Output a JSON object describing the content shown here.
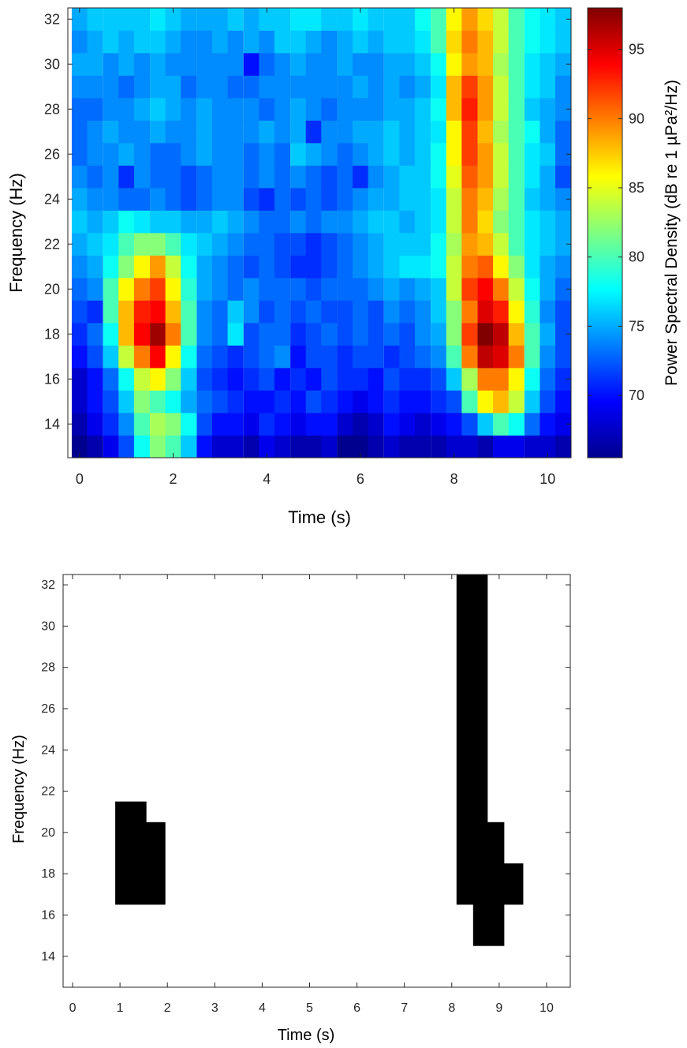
{
  "chart_data": [
    {
      "type": "heatmap",
      "title": "",
      "xlabel": "Time (s)",
      "ylabel": "Frequency (Hz)",
      "colorbar_label": "Power Spectral Density (dB re 1 µPa²/Hz)",
      "colormap": "jet",
      "xlim": [
        -0.25,
        10.5
      ],
      "ylim": [
        12.5,
        32.5
      ],
      "clim": [
        65.5,
        98
      ],
      "xticks": [
        0,
        2,
        4,
        6,
        8,
        10
      ],
      "yticks": [
        14,
        16,
        18,
        20,
        22,
        24,
        26,
        28,
        30,
        32
      ],
      "colorbar_ticks": [
        70,
        75,
        80,
        85,
        90,
        95
      ],
      "grid": false,
      "time_bin_s": 0.333,
      "freq_bin_hz": 1,
      "frequencies": [
        13,
        14,
        15,
        16,
        17,
        18,
        19,
        20,
        21,
        22,
        23,
        24,
        25,
        26,
        27,
        28,
        29,
        30,
        31,
        32
      ],
      "times": [
        0.0,
        0.33,
        0.67,
        1.0,
        1.33,
        1.67,
        2.0,
        2.33,
        2.67,
        3.0,
        3.33,
        3.67,
        4.0,
        4.33,
        4.67,
        5.0,
        5.33,
        5.67,
        6.0,
        6.33,
        6.67,
        7.0,
        7.33,
        7.67,
        8.0,
        8.33,
        8.67,
        9.0,
        9.33,
        9.67,
        10.0,
        10.33
      ],
      "values_dB": [
        [
          66,
          67,
          69,
          72,
          78,
          82,
          80,
          76,
          70,
          68,
          68,
          67,
          69,
          68,
          67,
          67,
          68,
          66,
          66,
          67,
          68,
          67,
          67,
          67,
          68,
          68,
          67,
          69,
          69,
          68,
          68,
          67
        ],
        [
          67,
          69,
          71,
          74,
          80,
          83,
          82,
          78,
          72,
          70,
          70,
          69,
          71,
          70,
          69,
          70,
          70,
          68,
          67,
          68,
          70,
          69,
          68,
          69,
          70,
          72,
          76,
          80,
          78,
          73,
          70,
          69
        ],
        [
          68,
          70,
          72,
          76,
          82,
          80,
          78,
          75,
          73,
          72,
          71,
          70,
          70,
          71,
          70,
          72,
          71,
          70,
          69,
          70,
          71,
          70,
          70,
          71,
          72,
          80,
          86,
          88,
          84,
          76,
          72,
          70
        ],
        [
          68,
          70,
          73,
          78,
          84,
          86,
          82,
          76,
          72,
          71,
          70,
          71,
          72,
          70,
          71,
          70,
          72,
          71,
          71,
          70,
          72,
          71,
          71,
          72,
          76,
          83,
          90,
          90,
          86,
          78,
          73,
          71
        ],
        [
          70,
          72,
          76,
          84,
          90,
          94,
          86,
          78,
          73,
          72,
          71,
          72,
          73,
          74,
          70,
          72,
          72,
          71,
          72,
          72,
          71,
          72,
          73,
          74,
          80,
          90,
          96,
          95,
          90,
          80,
          74,
          72
        ],
        [
          71,
          73,
          78,
          88,
          94,
          97,
          90,
          80,
          74,
          73,
          77,
          72,
          73,
          73,
          71,
          72,
          73,
          72,
          73,
          72,
          73,
          72,
          74,
          75,
          82,
          92,
          98,
          96,
          88,
          80,
          75,
          72
        ],
        [
          72,
          71,
          80,
          88,
          93,
          94,
          88,
          80,
          74,
          73,
          76,
          74,
          72,
          73,
          72,
          73,
          72,
          72,
          73,
          72,
          74,
          73,
          74,
          76,
          82,
          90,
          95,
          93,
          86,
          79,
          74,
          72
        ],
        [
          73,
          74,
          80,
          86,
          90,
          92,
          86,
          79,
          75,
          74,
          73,
          74,
          73,
          73,
          73,
          72,
          73,
          73,
          73,
          74,
          75,
          74,
          75,
          76,
          84,
          92,
          94,
          90,
          84,
          78,
          75,
          73
        ],
        [
          74,
          75,
          78,
          82,
          86,
          89,
          84,
          78,
          75,
          74,
          73,
          72,
          73,
          72,
          71,
          71,
          72,
          73,
          74,
          75,
          76,
          77,
          77,
          78,
          84,
          90,
          91,
          86,
          82,
          77,
          75,
          74
        ],
        [
          75,
          76,
          77,
          80,
          82,
          82,
          80,
          77,
          76,
          75,
          74,
          73,
          73,
          72,
          72,
          71,
          72,
          73,
          74,
          75,
          76,
          76,
          76,
          78,
          83,
          89,
          88,
          84,
          80,
          77,
          76,
          75
        ],
        [
          76,
          75,
          76,
          78,
          77,
          76,
          76,
          75,
          75,
          76,
          75,
          74,
          73,
          73,
          74,
          73,
          74,
          74,
          75,
          76,
          76,
          75,
          76,
          77,
          84,
          90,
          87,
          82,
          80,
          77,
          76,
          75
        ],
        [
          75,
          74,
          74,
          73,
          73,
          74,
          73,
          72,
          73,
          74,
          74,
          72,
          71,
          73,
          72,
          73,
          72,
          73,
          74,
          75,
          75,
          76,
          76,
          77,
          84,
          90,
          88,
          83,
          80,
          76,
          75,
          74
        ],
        [
          74,
          73,
          74,
          71,
          74,
          73,
          73,
          72,
          73,
          74,
          74,
          73,
          74,
          73,
          74,
          73,
          72,
          73,
          71,
          74,
          75,
          76,
          76,
          78,
          85,
          91,
          89,
          84,
          80,
          77,
          75,
          72
        ],
        [
          73,
          74,
          74,
          75,
          74,
          73,
          73,
          74,
          75,
          74,
          74,
          73,
          74,
          73,
          76,
          75,
          74,
          73,
          74,
          75,
          76,
          75,
          76,
          78,
          86,
          92,
          89,
          84,
          80,
          77,
          76,
          73
        ],
        [
          73,
          74,
          75,
          74,
          74,
          75,
          74,
          74,
          75,
          74,
          74,
          74,
          75,
          74,
          75,
          71,
          74,
          74,
          75,
          75,
          76,
          75,
          76,
          77,
          86,
          92,
          88,
          83,
          80,
          78,
          75,
          73
        ],
        [
          73,
          73,
          74,
          74,
          75,
          76,
          75,
          74,
          75,
          74,
          74,
          74,
          73,
          74,
          75,
          74,
          73,
          74,
          74,
          74,
          75,
          75,
          76,
          78,
          88,
          93,
          89,
          84,
          80,
          76,
          75,
          74
        ],
        [
          74,
          74,
          74,
          73,
          74,
          75,
          75,
          73,
          74,
          74,
          73,
          73,
          74,
          74,
          74,
          74,
          74,
          74,
          75,
          74,
          75,
          74,
          75,
          77,
          88,
          92,
          89,
          84,
          80,
          77,
          76,
          74
        ],
        [
          75,
          75,
          74,
          75,
          74,
          75,
          74,
          74,
          74,
          74,
          74,
          70,
          73,
          74,
          75,
          74,
          74,
          75,
          74,
          74,
          75,
          75,
          76,
          78,
          86,
          89,
          88,
          83,
          80,
          77,
          76,
          75
        ],
        [
          74,
          75,
          76,
          75,
          76,
          76,
          75,
          74,
          74,
          75,
          74,
          75,
          74,
          76,
          76,
          75,
          74,
          75,
          76,
          75,
          76,
          76,
          77,
          80,
          87,
          90,
          88,
          84,
          80,
          78,
          77,
          76
        ],
        [
          75,
          76,
          76,
          76,
          76,
          77,
          76,
          75,
          75,
          75,
          76,
          75,
          76,
          76,
          77,
          77,
          76,
          76,
          77,
          76,
          76,
          76,
          78,
          80,
          86,
          89,
          87,
          84,
          80,
          78,
          77,
          76
        ]
      ]
    },
    {
      "type": "heatmap",
      "title": "",
      "xlabel": "Time (s)",
      "ylabel": "Frequency (Hz)",
      "colormap": "binary",
      "xlim": [
        -0.2,
        10.5
      ],
      "ylim": [
        12.5,
        32.5
      ],
      "xticks": [
        0,
        1,
        2,
        3,
        4,
        5,
        6,
        7,
        8,
        9,
        10
      ],
      "yticks": [
        14,
        16,
        18,
        20,
        22,
        24,
        26,
        28,
        30,
        32
      ],
      "grid": false,
      "detections": [
        {
          "t0": 0.9,
          "t1": 1.55,
          "f0": 16.5,
          "f1": 21.5
        },
        {
          "t0": 1.55,
          "t1": 1.95,
          "f0": 16.5,
          "f1": 20.5
        },
        {
          "t0": 8.1,
          "t1": 8.45,
          "f0": 16.5,
          "f1": 32.5
        },
        {
          "t0": 8.45,
          "t1": 8.75,
          "f0": 14.5,
          "f1": 32.5
        },
        {
          "t0": 8.75,
          "t1": 9.1,
          "f0": 14.5,
          "f1": 20.5
        },
        {
          "t0": 9.1,
          "t1": 9.5,
          "f0": 16.5,
          "f1": 18.5
        }
      ]
    }
  ]
}
